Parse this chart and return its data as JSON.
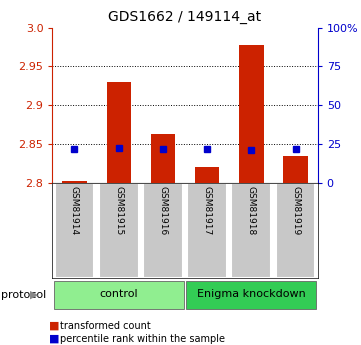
{
  "title": "GDS1662 / 149114_at",
  "samples": [
    "GSM81914",
    "GSM81915",
    "GSM81916",
    "GSM81917",
    "GSM81918",
    "GSM81919"
  ],
  "red_values": [
    2.802,
    2.93,
    2.863,
    2.82,
    2.977,
    2.835
  ],
  "blue_values": [
    2.843,
    2.845,
    2.843,
    2.843,
    2.842,
    2.843
  ],
  "ymin": 2.8,
  "ymax": 3.0,
  "yticks_left": [
    2.8,
    2.85,
    2.9,
    2.95,
    3.0
  ],
  "yticks_right_vals": [
    0,
    25,
    50,
    75,
    100
  ],
  "groups": [
    {
      "label": "control",
      "start": 0,
      "end": 3,
      "color": "#90ee90"
    },
    {
      "label": "Enigma knockdown",
      "start": 3,
      "end": 6,
      "color": "#33cc55"
    }
  ],
  "bar_color": "#cc2200",
  "blue_color": "#0000cc",
  "bg_color": "#ffffff",
  "tick_area_bg": "#c8c8c8",
  "left_axis_color": "#cc2200",
  "right_axis_color": "#0000cc",
  "legend_red": "transformed count",
  "legend_blue": "percentile rank within the sample",
  "bar_width": 0.55
}
